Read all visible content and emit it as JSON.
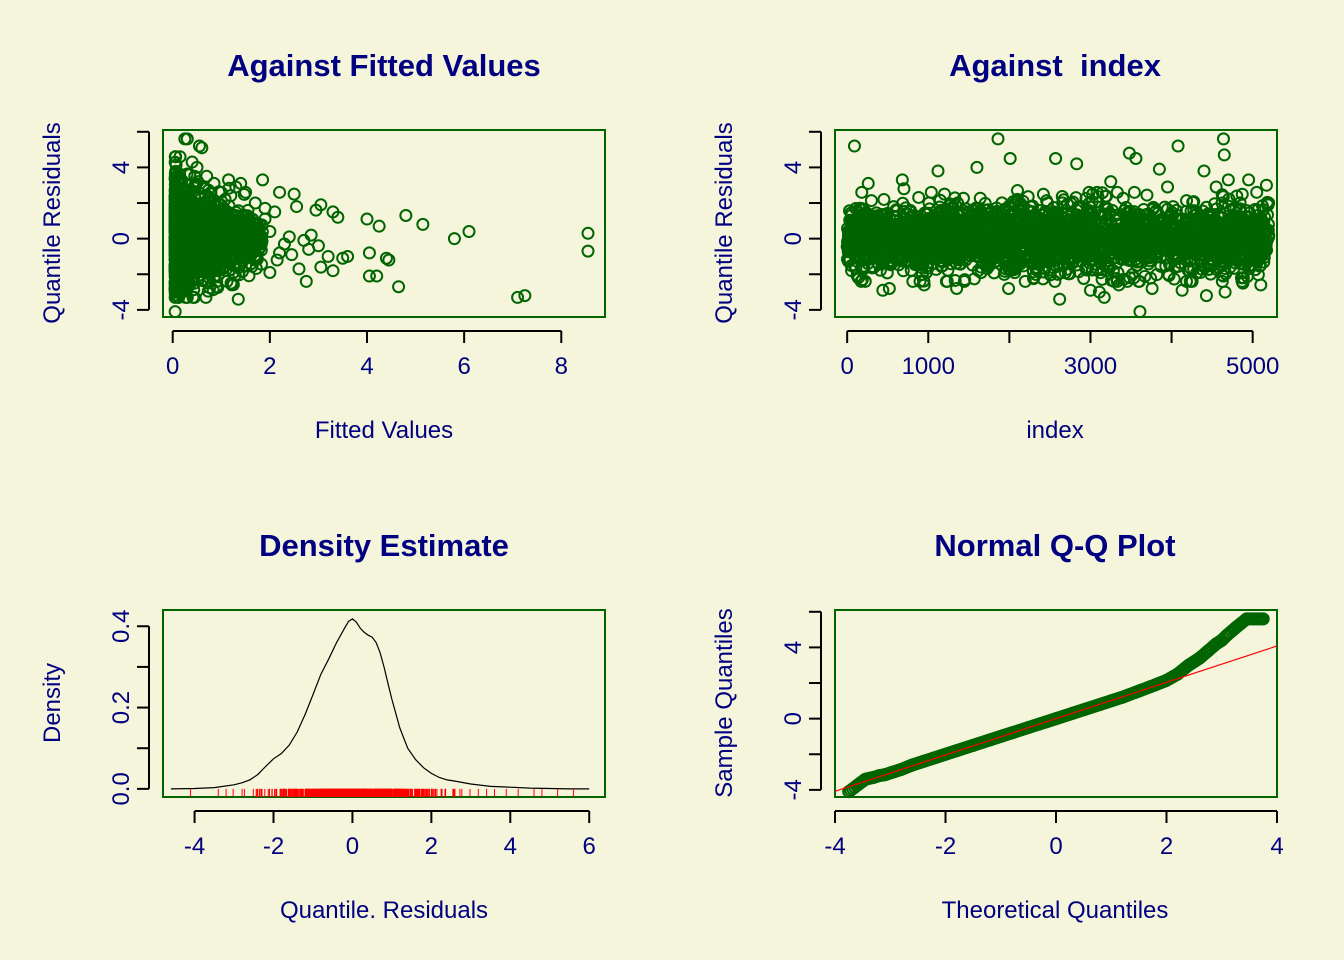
{
  "colors": {
    "background": "#F5F5DC",
    "text": "#000080",
    "points": "#006400",
    "frame": "#006400",
    "rug": "#FF0000",
    "qqline": "#FF0000",
    "density_line": "#000000"
  },
  "chart_data": [
    {
      "type": "scatter",
      "title": "Against Fitted Values",
      "xlabel": "Fitted Values",
      "ylabel": "Quantile Residuals",
      "xlim": [
        -0.2,
        8.9
      ],
      "ylim": [
        -4.4,
        6.1
      ],
      "xticks": [
        "0",
        "2",
        "4",
        "6",
        "8"
      ],
      "yticks": [
        "-4",
        "0",
        "4"
      ],
      "grid": false,
      "points": [
        [
          0.05,
          -4.1
        ],
        [
          0.25,
          5.6
        ],
        [
          0.3,
          5.6
        ],
        [
          0.55,
          5.2
        ],
        [
          0.6,
          5.1
        ],
        [
          0.15,
          4.6
        ],
        [
          0.4,
          4.3
        ],
        [
          0.5,
          4.0
        ],
        [
          0.7,
          3.5
        ],
        [
          0.85,
          3.1
        ],
        [
          1.0,
          2.6
        ],
        [
          1.15,
          3.3
        ],
        [
          1.3,
          2.9
        ],
        [
          1.4,
          3.1
        ],
        [
          1.5,
          2.6
        ],
        [
          1.85,
          3.3
        ],
        [
          2.2,
          2.6
        ],
        [
          2.5,
          2.5
        ],
        [
          1.9,
          1.7
        ],
        [
          2.1,
          1.5
        ],
        [
          2.55,
          1.8
        ],
        [
          2.95,
          1.6
        ],
        [
          3.05,
          1.9
        ],
        [
          3.3,
          1.5
        ],
        [
          3.4,
          1.2
        ],
        [
          3.0,
          -0.4
        ],
        [
          3.2,
          -1.0
        ],
        [
          3.5,
          -1.1
        ],
        [
          2.8,
          -0.6
        ],
        [
          2.6,
          -1.7
        ],
        [
          3.05,
          -1.6
        ],
        [
          3.3,
          -1.8
        ],
        [
          2.75,
          -2.4
        ],
        [
          1.35,
          -3.4
        ],
        [
          1.2,
          -2.5
        ],
        [
          0.9,
          -2.7
        ],
        [
          4.0,
          1.1
        ],
        [
          4.25,
          0.7
        ],
        [
          4.05,
          -0.8
        ],
        [
          4.05,
          -2.1
        ],
        [
          4.2,
          -2.1
        ],
        [
          4.4,
          -1.1
        ],
        [
          4.45,
          -1.2
        ],
        [
          4.65,
          -2.7
        ],
        [
          4.8,
          1.3
        ],
        [
          5.15,
          0.8
        ],
        [
          5.8,
          0.0
        ],
        [
          6.1,
          0.4
        ],
        [
          7.1,
          -3.3
        ],
        [
          7.25,
          -3.2
        ],
        [
          8.55,
          0.3
        ],
        [
          8.55,
          -0.7
        ],
        [
          1.6,
          0.7
        ],
        [
          1.8,
          -0.2
        ],
        [
          2.0,
          0.4
        ],
        [
          2.3,
          -0.3
        ],
        [
          2.4,
          0.1
        ],
        [
          2.7,
          -0.1
        ],
        [
          2.45,
          -0.9
        ],
        [
          2.2,
          -0.8
        ],
        [
          1.7,
          -1.2
        ],
        [
          1.5,
          -1.5
        ],
        [
          1.25,
          -1.9
        ],
        [
          2.0,
          -1.9
        ],
        [
          1.9,
          1.1
        ],
        [
          1.3,
          1.3
        ],
        [
          1.7,
          2.0
        ],
        [
          2.15,
          -1.2
        ],
        [
          3.6,
          -1.0
        ],
        [
          2.85,
          0.2
        ],
        [
          1.4,
          -0.5
        ],
        [
          1.05,
          1.7
        ],
        [
          0.95,
          -1.4
        ],
        [
          0.8,
          2.2
        ],
        [
          0.75,
          -2.2
        ],
        [
          0.65,
          2.8
        ],
        [
          0.45,
          -2.5
        ],
        [
          0.35,
          3.6
        ],
        [
          0.2,
          -2.9
        ],
        [
          0.1,
          3.2
        ],
        [
          0.55,
          -1.0
        ],
        [
          0.3,
          1.5
        ]
      ]
    },
    {
      "type": "scatter",
      "title": "Against  index",
      "xlabel": "index",
      "ylabel": "Quantile Residuals",
      "xlim": [
        -150,
        5300
      ],
      "ylim": [
        -4.4,
        6.1
      ],
      "xticks": [
        "0",
        "1000",
        "3000",
        "5000"
      ],
      "yticks": [
        "-4",
        "0",
        "4"
      ],
      "grid": false,
      "n_points": 5200,
      "points": [
        [
          90,
          5.2
        ],
        [
          1860,
          5.6
        ],
        [
          4640,
          5.6
        ],
        [
          4650,
          4.7
        ],
        [
          4080,
          5.2
        ],
        [
          2570,
          4.5
        ],
        [
          3480,
          4.8
        ],
        [
          2010,
          4.5
        ],
        [
          3560,
          4.5
        ],
        [
          3610,
          -4.1
        ],
        [
          440,
          -2.9
        ],
        [
          520,
          -2.8
        ],
        [
          1350,
          -2.8
        ],
        [
          1990,
          -2.8
        ],
        [
          2620,
          -3.4
        ],
        [
          3110,
          -3.0
        ],
        [
          3170,
          -3.3
        ],
        [
          3350,
          -2.6
        ],
        [
          3760,
          -2.8
        ],
        [
          4130,
          -2.9
        ],
        [
          4430,
          -3.2
        ],
        [
          4660,
          -3.0
        ],
        [
          5100,
          -2.6
        ],
        [
          4950,
          3.3
        ],
        [
          4400,
          3.8
        ],
        [
          3850,
          3.9
        ],
        [
          1600,
          4.0
        ],
        [
          680,
          3.3
        ],
        [
          260,
          3.1
        ],
        [
          1120,
          3.8
        ],
        [
          2830,
          4.2
        ],
        [
          4700,
          3.3
        ],
        [
          5170,
          3.0
        ],
        [
          950,
          -2.6
        ],
        [
          1450,
          -2.3
        ],
        [
          2300,
          -2.2
        ],
        [
          3000,
          -2.9
        ],
        [
          4230,
          -2.4
        ],
        [
          4880,
          -2.5
        ],
        [
          180,
          2.6
        ],
        [
          700,
          2.8
        ],
        [
          1200,
          2.5
        ],
        [
          2100,
          2.7
        ],
        [
          3250,
          3.2
        ],
        [
          3950,
          2.9
        ],
        [
          4550,
          2.9
        ],
        [
          5050,
          2.6
        ]
      ]
    },
    {
      "type": "line",
      "title": "Density Estimate",
      "xlabel": "Quantile. Residuals",
      "ylabel": "Density",
      "xlim": [
        -4.8,
        6.4
      ],
      "ylim": [
        -0.02,
        0.44
      ],
      "xticks": [
        "-4",
        "-2",
        "0",
        "2",
        "4",
        "6"
      ],
      "yticks": [
        "0.0",
        "0.2",
        "0.4"
      ],
      "grid": false,
      "x": [
        -4.6,
        -4.0,
        -3.5,
        -3.0,
        -2.8,
        -2.6,
        -2.4,
        -2.2,
        -2.0,
        -1.8,
        -1.6,
        -1.4,
        -1.2,
        -1.0,
        -0.8,
        -0.6,
        -0.4,
        -0.2,
        -0.1,
        0.0,
        0.1,
        0.2,
        0.3,
        0.4,
        0.5,
        0.6,
        0.7,
        0.8,
        0.9,
        1.0,
        1.2,
        1.4,
        1.6,
        1.8,
        2.0,
        2.2,
        2.4,
        2.6,
        3.0,
        3.5,
        4.0,
        4.5,
        5.0,
        5.5,
        6.0
      ],
      "y": [
        0.0,
        0.001,
        0.003,
        0.01,
        0.015,
        0.022,
        0.035,
        0.055,
        0.074,
        0.087,
        0.108,
        0.14,
        0.183,
        0.232,
        0.282,
        0.32,
        0.36,
        0.395,
        0.412,
        0.418,
        0.41,
        0.395,
        0.385,
        0.378,
        0.373,
        0.36,
        0.335,
        0.3,
        0.26,
        0.22,
        0.15,
        0.1,
        0.072,
        0.052,
        0.038,
        0.028,
        0.022,
        0.019,
        0.012,
        0.006,
        0.004,
        0.002,
        0.001,
        0.0,
        0.0
      ],
      "rug_range": [
        -4.1,
        5.6
      ]
    },
    {
      "type": "scatter",
      "title": "Normal Q-Q Plot",
      "xlabel": "Theoretical Quantiles",
      "ylabel": "Sample Quantiles",
      "xlim": [
        -4.0,
        4.0
      ],
      "ylim": [
        -4.4,
        6.1
      ],
      "xticks": [
        "-4",
        "-2",
        "0",
        "2",
        "4"
      ],
      "yticks": [
        "-4",
        "0",
        "4"
      ],
      "grid": false,
      "reference_line": {
        "intercept": 0.0,
        "slope": 1.02
      },
      "x": [
        -3.75,
        -3.45,
        -3.3,
        -3.2,
        -3.1,
        -3.0,
        -2.8,
        -2.6,
        -2.4,
        -2.2,
        -2.0,
        -1.8,
        -1.5,
        -1.2,
        -1.0,
        -0.8,
        -0.5,
        -0.3,
        0.0,
        0.3,
        0.5,
        0.8,
        1.0,
        1.2,
        1.5,
        1.8,
        2.0,
        2.2,
        2.4,
        2.6,
        2.75,
        2.9,
        3.0,
        3.1,
        3.25,
        3.45,
        3.75
      ],
      "y": [
        -4.1,
        -3.4,
        -3.3,
        -3.2,
        -3.15,
        -3.05,
        -2.85,
        -2.6,
        -2.4,
        -2.2,
        -2.0,
        -1.8,
        -1.5,
        -1.2,
        -1.0,
        -0.8,
        -0.5,
        -0.3,
        0.0,
        0.3,
        0.5,
        0.8,
        1.0,
        1.2,
        1.55,
        1.9,
        2.15,
        2.5,
        3.0,
        3.4,
        3.8,
        4.2,
        4.4,
        4.7,
        5.1,
        5.6,
        5.6
      ]
    }
  ]
}
